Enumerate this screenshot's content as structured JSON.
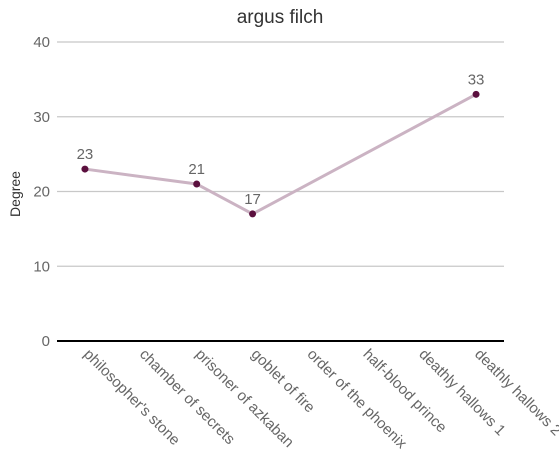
{
  "chart_data": {
    "type": "line",
    "title": "argus filch",
    "xlabel": "",
    "ylabel": "Degree",
    "ylim": [
      0,
      40
    ],
    "yticks": [
      0,
      10,
      20,
      30,
      40
    ],
    "categories": [
      "philosopher's stone",
      "chamber of secrets",
      "prisoner of azkaban",
      "goblet of fire",
      "order of the phoenix",
      "half-blood prince",
      "deathly hallows 1",
      "deathly hallows 2"
    ],
    "series": [
      {
        "values": [
          23,
          null,
          21,
          17,
          null,
          null,
          null,
          33
        ]
      }
    ],
    "data_labels": true,
    "grid": true,
    "legend": "none",
    "colors": {
      "line": "#cbb3c3",
      "point": "#5b0f3e",
      "grid": "#c8c8c8",
      "baseline": "#000000"
    }
  }
}
